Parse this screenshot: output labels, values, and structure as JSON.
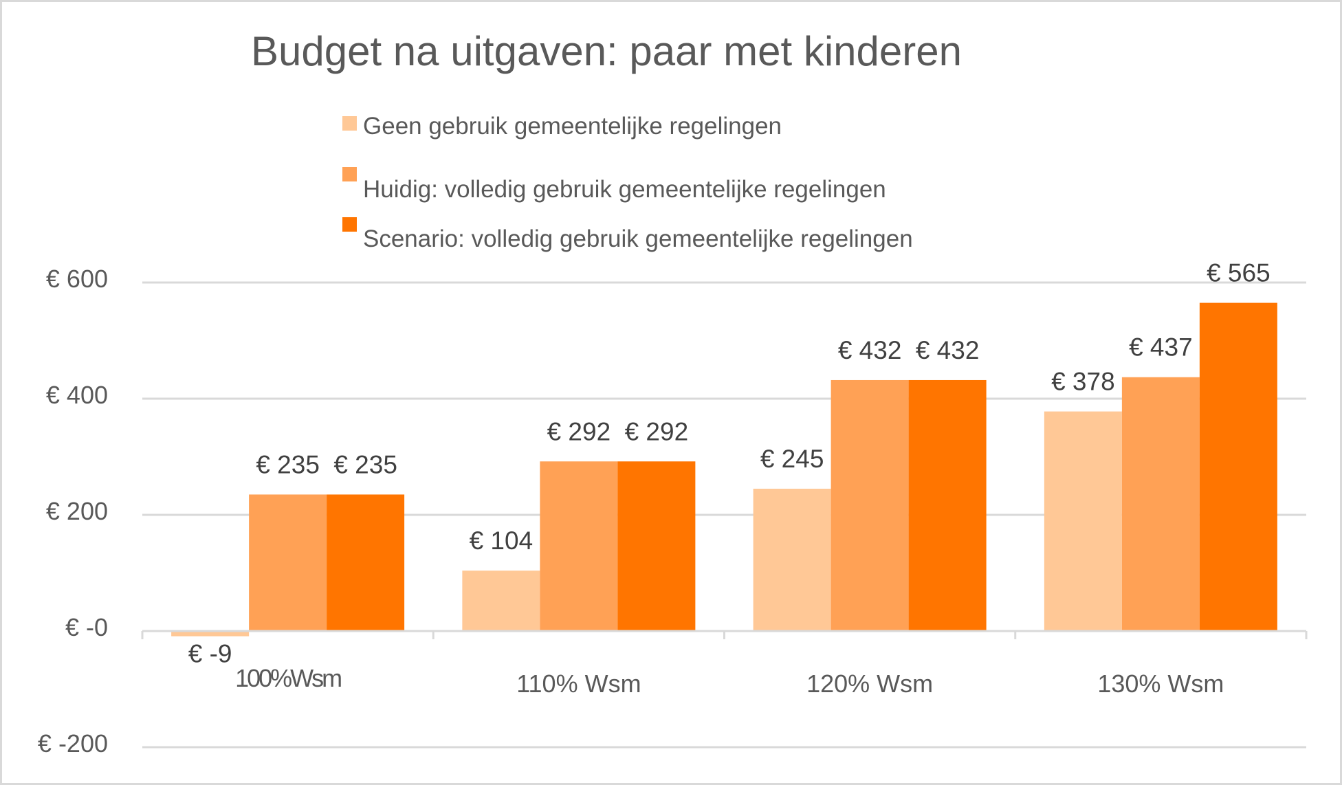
{
  "chart_data": {
    "type": "bar",
    "title": "Budget na uitgaven: paar met kinderen",
    "xlabel": "",
    "ylabel": "",
    "categories": [
      "100%Wsm",
      "110% Wsm",
      "120% Wsm",
      "130% Wsm"
    ],
    "series": [
      {
        "name": "Geen gebruik gemeentelijke regelingen",
        "color": "#FFC896",
        "values": [
          -9,
          104,
          245,
          378
        ],
        "labels": [
          "€ -9",
          "€ 104",
          "€ 245",
          "€ 378"
        ]
      },
      {
        "name": "Huidig: volledig gebruik gemeentelijke regelingen",
        "color": "#FFA155",
        "values": [
          235,
          292,
          432,
          437
        ],
        "labels": [
          "€ 235",
          "€ 292",
          "€ 432",
          "€ 437"
        ]
      },
      {
        "name": "Scenario: volledig gebruik gemeentelijke regelingen",
        "color": "#FF7500",
        "values": [
          235,
          292,
          432,
          565
        ],
        "labels": [
          "€ 235",
          "€ 292",
          "€ 432",
          "€ 565"
        ]
      }
    ],
    "ylim": [
      -200,
      600
    ],
    "yticks": [
      600,
      400,
      200,
      0,
      -200
    ],
    "ytick_labels": [
      "€ 600",
      "€ 400",
      "€ 200",
      "€ -0",
      "€ -200"
    ],
    "grid": true,
    "legend_position": "top"
  }
}
